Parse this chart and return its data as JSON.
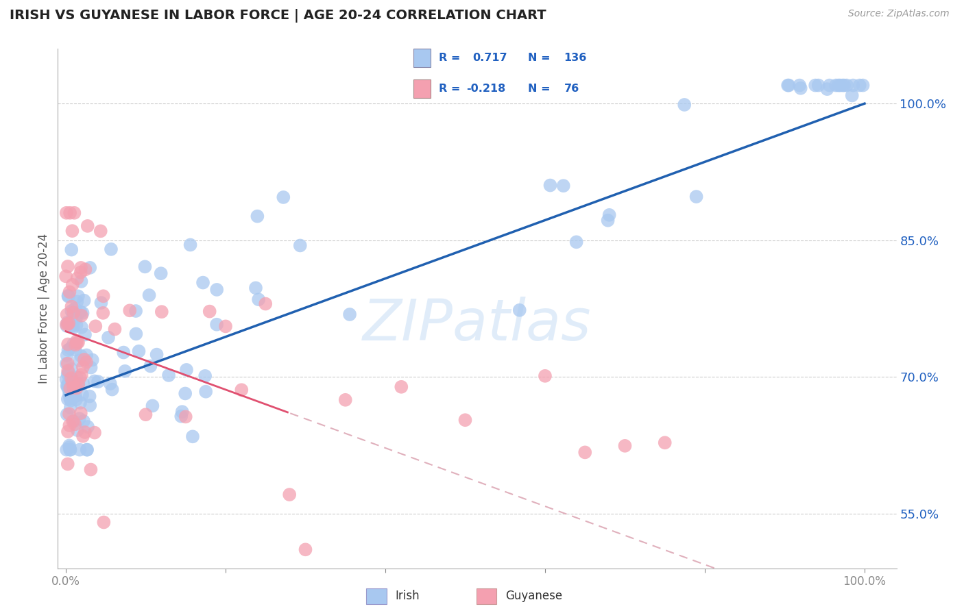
{
  "title": "IRISH VS GUYANESE IN LABOR FORCE | AGE 20-24 CORRELATION CHART",
  "source_text": "Source: ZipAtlas.com",
  "ylabel": "In Labor Force | Age 20-24",
  "y_tick_labels": [
    "55.0%",
    "70.0%",
    "85.0%",
    "100.0%"
  ],
  "y_tick_values": [
    0.55,
    0.7,
    0.85,
    1.0
  ],
  "irish_R": 0.717,
  "irish_N": 136,
  "guyanese_R": -0.218,
  "guyanese_N": 76,
  "irish_color": "#a8c8f0",
  "irish_line_color": "#2060b0",
  "guyanese_color": "#f4a0b0",
  "guyanese_line_color": "#e05070",
  "watermark": "ZIPatlas",
  "background_color": "#ffffff",
  "legend_color_irish": "#a8c8f0",
  "legend_color_guyanese": "#f4a0b0",
  "legend_text_color": "#2060c0"
}
